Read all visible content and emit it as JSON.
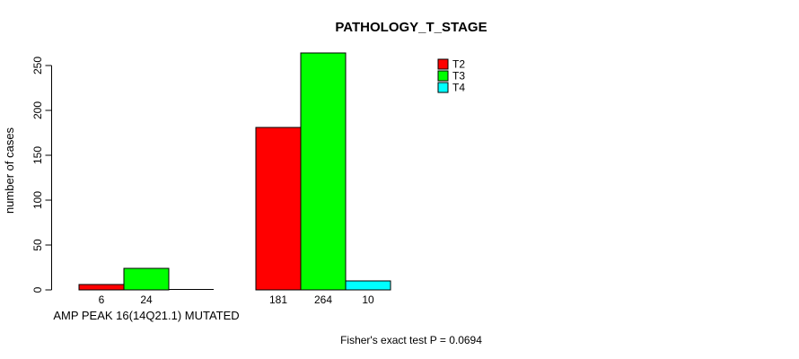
{
  "chart_data": {
    "type": "bar",
    "title": "PATHOLOGY_T_STAGE",
    "ylabel": "number of cases",
    "xlabel": "",
    "ylim": [
      0,
      250
    ],
    "yticks": [
      0,
      50,
      100,
      150,
      200,
      250
    ],
    "grid": false,
    "legend_position": "top-right",
    "categories": [
      "AMP PEAK 16(14Q21.1) MUTATED",
      ""
    ],
    "series": [
      {
        "name": "T2",
        "color": "#ff0000",
        "values": [
          6,
          181
        ]
      },
      {
        "name": "T3",
        "color": "#00ff00",
        "values": [
          24,
          264
        ]
      },
      {
        "name": "T4",
        "color": "#00ffff",
        "values": [
          0,
          10
        ]
      }
    ],
    "bar_value_labels": [
      [
        "6",
        "24",
        ""
      ],
      [
        "181",
        "264",
        "10"
      ]
    ],
    "footnote": "Fisher's exact test P = 0.0694"
  },
  "colors": {
    "t2": "#ff0000",
    "t3": "#00ff00",
    "t4": "#00ffff",
    "axis": "#000000",
    "background": "#ffffff"
  }
}
